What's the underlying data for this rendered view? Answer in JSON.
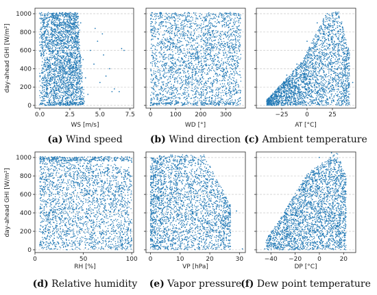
{
  "chart_data": [
    {
      "type": "scatter",
      "caption_letter": "(a)",
      "caption_text": "Wind speed",
      "xlabel": "WS [m/s]",
      "ylabel": "day-ahead GHI [W/m²]",
      "xlim": [
        -0.4,
        7.8
      ],
      "ylim": [
        -30,
        1060
      ],
      "xticks": [
        0.0,
        2.5,
        5.0,
        7.5
      ],
      "xticklabels": [
        "0.0",
        "2.5",
        "5.0",
        "7.5"
      ],
      "yticks": [
        0,
        200,
        400,
        600,
        800,
        1000
      ],
      "yticklabels": [
        "0",
        "200",
        "400",
        "600",
        "800",
        "1000"
      ],
      "show_ytick_labels": true,
      "grid": "horizontal dashed",
      "color": "#1f77b4",
      "points": [
        [
          0.2,
          50
        ],
        [
          0.5,
          300
        ],
        [
          0.8,
          700
        ],
        [
          1.2,
          950
        ],
        [
          1.5,
          980
        ],
        [
          2.0,
          600
        ],
        [
          2.5,
          850
        ],
        [
          2.8,
          400
        ],
        [
          3.0,
          200
        ],
        [
          3.2,
          750
        ],
        [
          3.4,
          900
        ],
        [
          3.6,
          500
        ],
        [
          3.8,
          300
        ],
        [
          4.0,
          120
        ],
        [
          4.2,
          600
        ],
        [
          4.5,
          450
        ],
        [
          4.8,
          700
        ],
        [
          5.0,
          250
        ],
        [
          5.3,
          550
        ],
        [
          5.5,
          320
        ],
        [
          5.8,
          400
        ],
        [
          6.0,
          150
        ],
        [
          6.2,
          180
        ],
        [
          6.6,
          150
        ],
        [
          6.8,
          620
        ],
        [
          7.0,
          600
        ],
        [
          4.6,
          840
        ],
        [
          5.2,
          780
        ]
      ]
    },
    {
      "type": "scatter",
      "caption_letter": "(b)",
      "caption_text": "Wind direction",
      "xlabel": "WD [°]",
      "ylabel": "",
      "xlim": [
        -18,
        378
      ],
      "ylim": [
        -30,
        1060
      ],
      "xticks": [
        0,
        100,
        200,
        300
      ],
      "xticklabels": [
        "0",
        "100",
        "200",
        "300"
      ],
      "yticks": [
        0,
        200,
        400,
        600,
        800,
        1000
      ],
      "yticklabels": [
        "",
        "",
        "",
        "",
        "",
        ""
      ],
      "show_ytick_labels": false,
      "grid": "horizontal dashed",
      "color": "#1f77b4",
      "points": [
        [
          0,
          0
        ],
        [
          50,
          520
        ],
        [
          100,
          830
        ],
        [
          150,
          300
        ],
        [
          200,
          950
        ],
        [
          250,
          640
        ],
        [
          300,
          120
        ],
        [
          350,
          1000
        ],
        [
          180,
          560
        ],
        [
          200,
          600
        ],
        [
          220,
          520
        ],
        [
          210,
          710
        ],
        [
          120,
          430
        ],
        [
          280,
          380
        ]
      ]
    },
    {
      "type": "scatter",
      "caption_letter": "(c)",
      "caption_text": "Ambient temperature",
      "xlabel": "AT [°C]",
      "ylabel": "",
      "xlim": [
        -50,
        48
      ],
      "ylim": [
        -30,
        1060
      ],
      "xticks": [
        -25,
        0,
        25
      ],
      "xticklabels": [
        "−25",
        "0",
        "25"
      ],
      "yticks": [
        0,
        200,
        400,
        600,
        800,
        1000
      ],
      "yticklabels": [
        "",
        "",
        "",
        "",
        "",
        ""
      ],
      "show_ytick_labels": false,
      "grid": "horizontal dashed",
      "color": "#1f77b4",
      "points": [
        [
          -38,
          20
        ],
        [
          -30,
          150
        ],
        [
          -20,
          330
        ],
        [
          -10,
          450
        ],
        [
          0,
          700
        ],
        [
          10,
          900
        ],
        [
          20,
          1000
        ],
        [
          30,
          850
        ],
        [
          40,
          400
        ],
        [
          38,
          100
        ],
        [
          45,
          250
        ],
        [
          -35,
          50
        ]
      ]
    },
    {
      "type": "scatter",
      "caption_letter": "(d)",
      "caption_text": "Relative humidity",
      "xlabel": "RH [%]",
      "ylabel": "day-ahead GHI [W/m²]",
      "xlim": [
        0,
        102
      ],
      "ylim": [
        -30,
        1060
      ],
      "xticks": [
        0,
        50,
        100
      ],
      "xticklabels": [
        "0",
        "50",
        "100"
      ],
      "yticks": [
        0,
        200,
        400,
        600,
        800,
        1000
      ],
      "yticklabels": [
        "0",
        "200",
        "400",
        "600",
        "800",
        "1000"
      ],
      "show_ytick_labels": true,
      "grid": "horizontal dashed",
      "color": "#1f77b4",
      "points": [
        [
          5,
          60
        ],
        [
          10,
          400
        ],
        [
          20,
          900
        ],
        [
          30,
          1000
        ],
        [
          40,
          700
        ],
        [
          50,
          500
        ],
        [
          60,
          850
        ],
        [
          70,
          300
        ],
        [
          80,
          600
        ],
        [
          90,
          200
        ],
        [
          100,
          950
        ],
        [
          100,
          100
        ]
      ]
    },
    {
      "type": "scatter",
      "caption_letter": "(e)",
      "caption_text": "Vapor pressure",
      "xlabel": "VP [hPa]",
      "ylabel": "",
      "xlim": [
        -1.5,
        32
      ],
      "ylim": [
        -30,
        1060
      ],
      "xticks": [
        0,
        10,
        20,
        30
      ],
      "xticklabels": [
        "0",
        "10",
        "20",
        "30"
      ],
      "yticks": [
        0,
        200,
        400,
        600,
        800,
        1000
      ],
      "yticklabels": [
        "",
        "",
        "",
        "",
        "",
        ""
      ],
      "show_ytick_labels": false,
      "grid": "horizontal dashed",
      "color": "#1f77b4",
      "points": [
        [
          1,
          50
        ],
        [
          3,
          500
        ],
        [
          6,
          950
        ],
        [
          10,
          1000
        ],
        [
          14,
          700
        ],
        [
          18,
          800
        ],
        [
          22,
          600
        ],
        [
          25,
          400
        ],
        [
          27,
          300
        ],
        [
          29,
          420
        ],
        [
          31,
          10
        ],
        [
          2,
          850
        ]
      ]
    },
    {
      "type": "scatter",
      "caption_letter": "(f)",
      "caption_text": "Dew point temperature",
      "xlabel": "DP [°C]",
      "ylabel": "",
      "xlim": [
        -52,
        30
      ],
      "ylim": [
        -30,
        1060
      ],
      "xticks": [
        -40,
        -20,
        0,
        20
      ],
      "xticklabels": [
        "−40",
        "−20",
        "0",
        "20"
      ],
      "yticks": [
        0,
        200,
        400,
        600,
        800,
        1000
      ],
      "yticklabels": [
        "",
        "",
        "",
        "",
        "",
        ""
      ],
      "show_ytick_labels": false,
      "grid": "horizontal dashed",
      "color": "#1f77b4",
      "points": [
        [
          -45,
          10
        ],
        [
          -38,
          120
        ],
        [
          -30,
          300
        ],
        [
          -20,
          550
        ],
        [
          -10,
          800
        ],
        [
          0,
          1000
        ],
        [
          10,
          1050
        ],
        [
          18,
          900
        ],
        [
          20,
          700
        ],
        [
          22,
          400
        ],
        [
          15,
          200
        ],
        [
          -5,
          50
        ]
      ]
    }
  ]
}
